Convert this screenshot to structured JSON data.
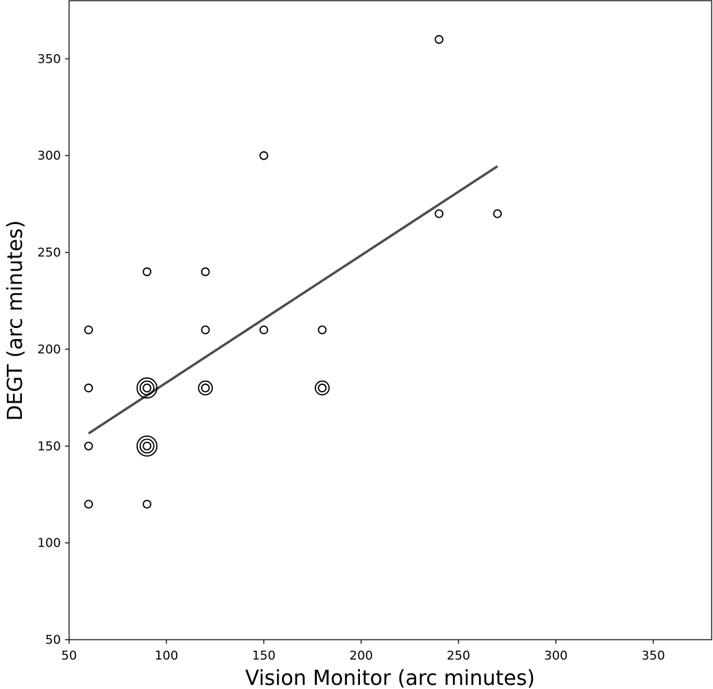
{
  "chart_data": {
    "type": "scatter",
    "title": "",
    "xlabel": "Vision Monitor (arc minutes)",
    "ylabel": "DEGT (arc minutes)",
    "xlim": [
      50,
      380
    ],
    "ylim": [
      50,
      380
    ],
    "xticks": [
      50,
      100,
      150,
      200,
      250,
      300,
      350
    ],
    "yticks": [
      50,
      100,
      150,
      200,
      250,
      300,
      350
    ],
    "grid": false,
    "marker_color": "#000000",
    "fit_color": "#4d4d4d",
    "points": [
      {
        "x": 60,
        "y": 120,
        "count": 1
      },
      {
        "x": 60,
        "y": 150,
        "count": 1
      },
      {
        "x": 60,
        "y": 180,
        "count": 1
      },
      {
        "x": 60,
        "y": 210,
        "count": 1
      },
      {
        "x": 90,
        "y": 120,
        "count": 1
      },
      {
        "x": 90,
        "y": 150,
        "count": 3
      },
      {
        "x": 90,
        "y": 180,
        "count": 3
      },
      {
        "x": 90,
        "y": 240,
        "count": 1
      },
      {
        "x": 120,
        "y": 180,
        "count": 2
      },
      {
        "x": 120,
        "y": 210,
        "count": 1
      },
      {
        "x": 120,
        "y": 240,
        "count": 1
      },
      {
        "x": 150,
        "y": 210,
        "count": 1
      },
      {
        "x": 150,
        "y": 300,
        "count": 1
      },
      {
        "x": 180,
        "y": 180,
        "count": 2
      },
      {
        "x": 180,
        "y": 210,
        "count": 1
      },
      {
        "x": 240,
        "y": 270,
        "count": 1
      },
      {
        "x": 240,
        "y": 360,
        "count": 1
      },
      {
        "x": 270,
        "y": 270,
        "count": 1
      }
    ],
    "fit_line": {
      "x": [
        60,
        270
      ],
      "y": [
        156.5,
        294.5
      ]
    }
  }
}
